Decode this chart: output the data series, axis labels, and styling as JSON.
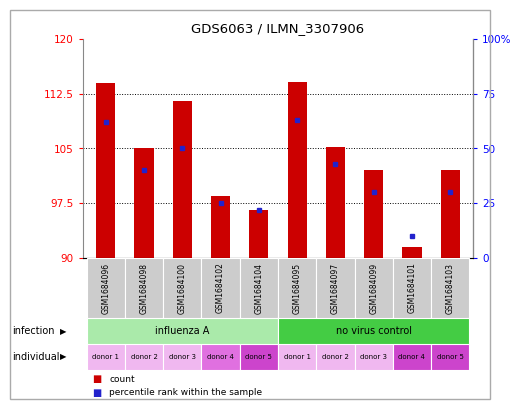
{
  "title": "GDS6063 / ILMN_3307906",
  "samples": [
    "GSM1684096",
    "GSM1684098",
    "GSM1684100",
    "GSM1684102",
    "GSM1684104",
    "GSM1684095",
    "GSM1684097",
    "GSM1684099",
    "GSM1684101",
    "GSM1684103"
  ],
  "count_values": [
    114.0,
    105.0,
    111.5,
    98.5,
    96.5,
    114.2,
    105.2,
    102.0,
    91.5,
    102.0
  ],
  "percentile_values": [
    62,
    40,
    50,
    25,
    22,
    63,
    43,
    30,
    10,
    30
  ],
  "ylim_left": [
    90,
    120
  ],
  "ylim_right": [
    0,
    100
  ],
  "yticks_left": [
    90,
    97.5,
    105,
    112.5,
    120
  ],
  "yticks_right": [
    0,
    25,
    50,
    75,
    100
  ],
  "bar_color": "#cc0000",
  "marker_color": "#2222cc",
  "groups": [
    {
      "label": "influenza A",
      "start": 0,
      "end": 5,
      "color": "#aaeaaa"
    },
    {
      "label": "no virus control",
      "start": 5,
      "end": 10,
      "color": "#44cc44"
    }
  ],
  "individuals": [
    "donor 1",
    "donor 2",
    "donor 3",
    "donor 4",
    "donor 5",
    "donor 1",
    "donor 2",
    "donor 3",
    "donor 4",
    "donor 5"
  ],
  "individual_colors": [
    "#f0b8f0",
    "#f0b8f0",
    "#f0b8f0",
    "#e070e0",
    "#cc44cc",
    "#f0b8f0",
    "#f0b8f0",
    "#f0b8f0",
    "#cc44cc",
    "#cc44cc"
  ],
  "background_color": "#ffffff",
  "infection_label": "infection",
  "individual_label": "individual",
  "legend_count": "count",
  "legend_percentile": "percentile rank within the sample",
  "bar_width": 0.5,
  "cell_bg": "#cccccc",
  "border_color": "#888888"
}
